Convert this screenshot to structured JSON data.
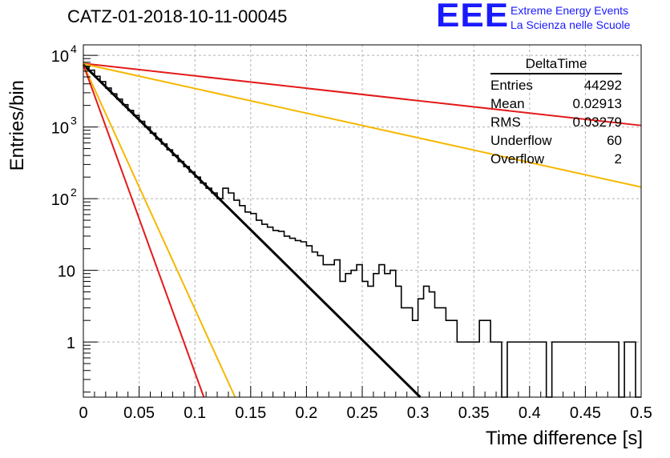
{
  "header": {
    "title": "CATZ-01-2018-10-11-00045",
    "logo": "EEE",
    "logo_line1": "Extreme Energy Events",
    "logo_line2": "La Scienza nelle Scuole"
  },
  "stats_box": {
    "title": "DeltaTime",
    "rows": [
      {
        "label": "Entries",
        "value": "44292"
      },
      {
        "label": "Mean",
        "value": "0.02913"
      },
      {
        "label": "RMS",
        "value": "0.03279"
      },
      {
        "label": "Underflow",
        "value": "60"
      },
      {
        "label": "Overflow",
        "value": "2"
      }
    ]
  },
  "chart_data": {
    "type": "line",
    "title": "CATZ-01-2018-10-11-00045",
    "xlabel": "Time difference [s]",
    "ylabel": "Entries/bin",
    "xlim": [
      0,
      0.5
    ],
    "ylim": [
      0.17,
      14000
    ],
    "yscale": "log",
    "grid": true,
    "x_ticks": [
      "0",
      "0.05",
      "0.1",
      "0.15",
      "0.2",
      "0.25",
      "0.3",
      "0.35",
      "0.4",
      "0.45",
      "0.5"
    ],
    "y_ticks": [
      {
        "value": 1,
        "label": "1"
      },
      {
        "value": 10,
        "label": "10"
      },
      {
        "value": 100,
        "label": "10",
        "exp": "2"
      },
      {
        "value": 1000,
        "label": "10",
        "exp": "3"
      },
      {
        "value": 10000,
        "label": "10",
        "exp": "4"
      }
    ],
    "histogram": {
      "color": "#000000",
      "bin_width": 0.005,
      "values": [
        7000,
        6200,
        5100,
        4300,
        3500,
        2900,
        2450,
        2050,
        1700,
        1450,
        1200,
        1000,
        820,
        680,
        580,
        480,
        400,
        330,
        280,
        235,
        200,
        165,
        140,
        120,
        100,
        140,
        120,
        95,
        80,
        65,
        62,
        50,
        44,
        40,
        36,
        35,
        30,
        28,
        26,
        25,
        22,
        18,
        16,
        12,
        12,
        14,
        7,
        9,
        10,
        12,
        7,
        6,
        9,
        12,
        9,
        10,
        6,
        3,
        3,
        2,
        4,
        6,
        5,
        3,
        3,
        2,
        2,
        1,
        1,
        1,
        1,
        2,
        2,
        1,
        1,
        0,
        1,
        1,
        1,
        1,
        1,
        1,
        1,
        0,
        1,
        1,
        1,
        1,
        1,
        1,
        1,
        1,
        1,
        1,
        1,
        1,
        0,
        1,
        1,
        0
      ]
    },
    "fits": [
      {
        "color": "#e31a1a",
        "width": 2,
        "x0": 0,
        "y0": 7700,
        "x1": 0.5,
        "y1": 1050
      },
      {
        "color": "#f5b800",
        "width": 2,
        "x0": 0,
        "y0": 7600,
        "x1": 0.5,
        "y1": 145
      },
      {
        "color": "#000000",
        "width": 3,
        "x0": 0,
        "y0": 7400,
        "x1": 0.302,
        "y1": 0.17
      },
      {
        "color": "#f5b800",
        "width": 2,
        "x0": 0,
        "y0": 7400,
        "x1": 0.136,
        "y1": 0.17
      },
      {
        "color": "#e31a1a",
        "width": 2,
        "x0": 0,
        "y0": 7400,
        "x1": 0.108,
        "y1": 0.17
      }
    ]
  }
}
